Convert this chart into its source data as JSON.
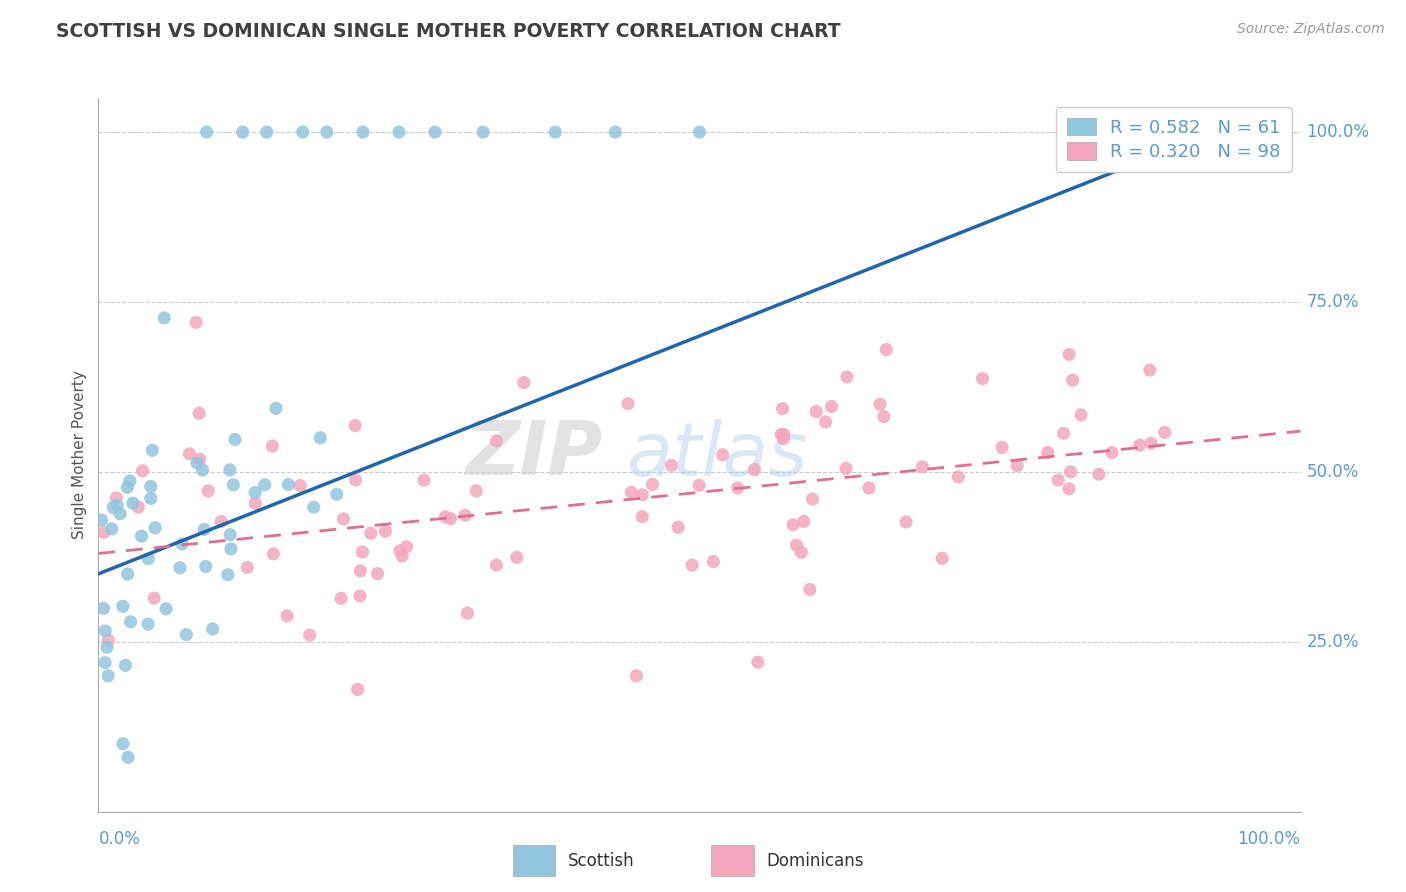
{
  "title": "SCOTTISH VS DOMINICAN SINGLE MOTHER POVERTY CORRELATION CHART",
  "source": "Source: ZipAtlas.com",
  "ylabel": "Single Mother Poverty",
  "legend_scottish": "Scottish",
  "legend_dominicans": "Dominicans",
  "r_scottish": 0.582,
  "n_scottish": 61,
  "r_dominican": 0.32,
  "n_dominican": 98,
  "scottish_color": "#92c5de",
  "dominican_color": "#f4a6bc",
  "trend_scottish_color": "#2166ac",
  "trend_dominican_color": "#e07090",
  "background_color": "#ffffff",
  "watermark_zip": "ZIP",
  "watermark_atlas": "atlas",
  "label_color": "#5b9bd5",
  "title_color": "#404040",
  "legend_text_color": "#5b9bd5",
  "legend_r_color": "#5b9bd5",
  "grid_color": "#cccccc",
  "scottish_color_legend": "#92c5de",
  "dominican_color_legend": "#f4a6bc",
  "xlim": [
    0.0,
    1.0
  ],
  "ylim": [
    0.0,
    1.05
  ],
  "ytick_vals": [
    0.25,
    0.5,
    0.75,
    1.0
  ],
  "ytick_labels": [
    "25.0%",
    "50.0%",
    "75.0%",
    "100.0%"
  ]
}
